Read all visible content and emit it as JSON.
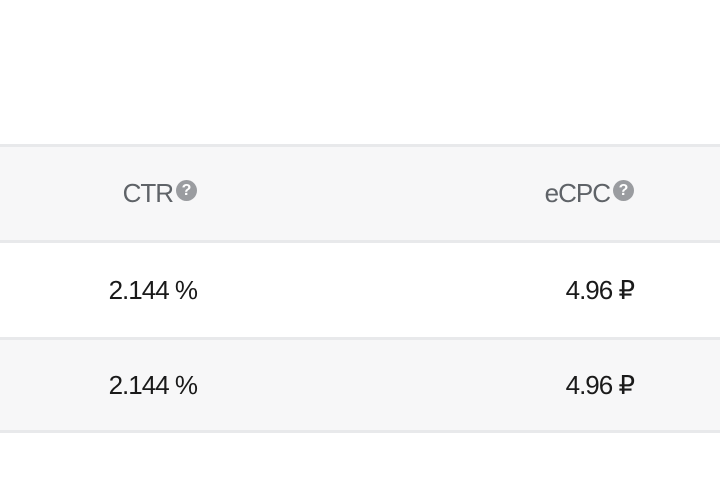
{
  "table": {
    "columns": [
      {
        "label": "CTR",
        "icon": "help-icon"
      },
      {
        "label": "eCPC",
        "icon": "help-icon"
      }
    ],
    "help_glyph": "?",
    "rows": [
      [
        "2.144 %",
        "4.96 ₽"
      ],
      [
        "2.144 %",
        "4.96 ₽"
      ]
    ]
  }
}
